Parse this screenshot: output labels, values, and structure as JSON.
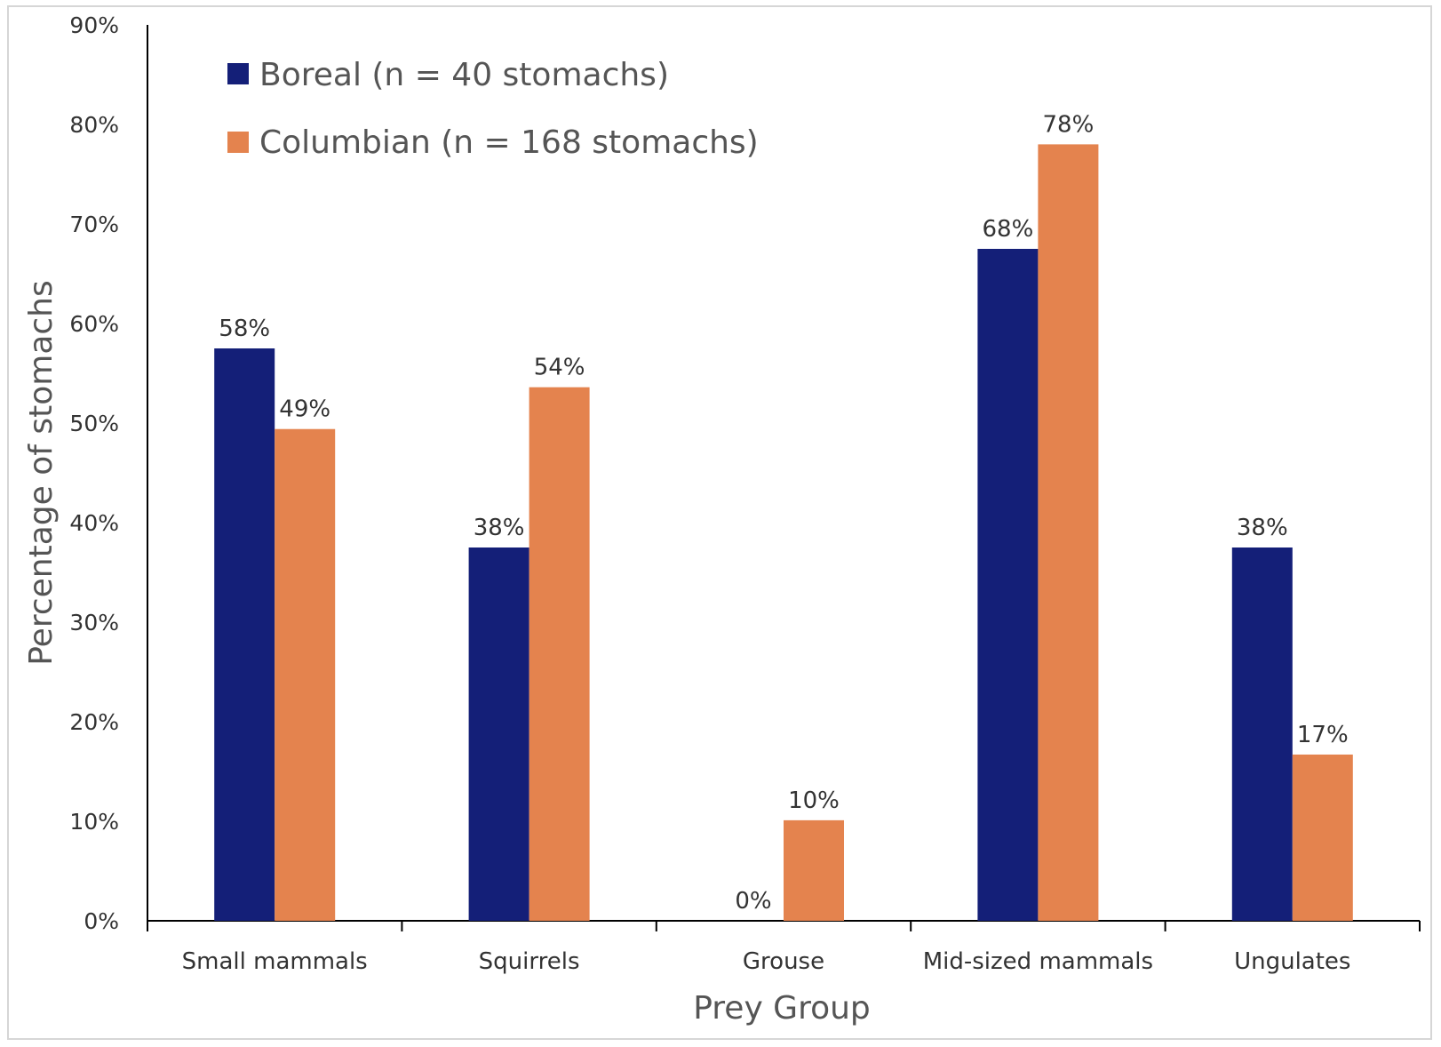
{
  "chart_data": {
    "type": "bar",
    "categories": [
      "Small mammals",
      "Squirrels",
      "Grouse",
      "Mid-sized mammals",
      "Ungulates"
    ],
    "series": [
      {
        "name": "Boreal (n = 40 stomachs)",
        "color": "#141f78",
        "values": [
          57.5,
          37.5,
          0,
          67.5,
          37.5
        ],
        "labels": [
          "58%",
          "38%",
          "0%",
          "68%",
          "38%"
        ]
      },
      {
        "name": "Columbian (n = 168 stomachs)",
        "color": "#e4834e",
        "values": [
          49.4,
          53.6,
          10.1,
          78.0,
          16.7
        ],
        "labels": [
          "49%",
          "54%",
          "10%",
          "78%",
          "17%"
        ]
      }
    ],
    "xlabel": "Prey Group",
    "ylabel": "Percentage of stomachs",
    "ylim": [
      0,
      90
    ],
    "yticks": [
      "0%",
      "10%",
      "20%",
      "30%",
      "40%",
      "50%",
      "60%",
      "70%",
      "80%",
      "90%"
    ],
    "grid": false,
    "legend_position": "top-left"
  }
}
